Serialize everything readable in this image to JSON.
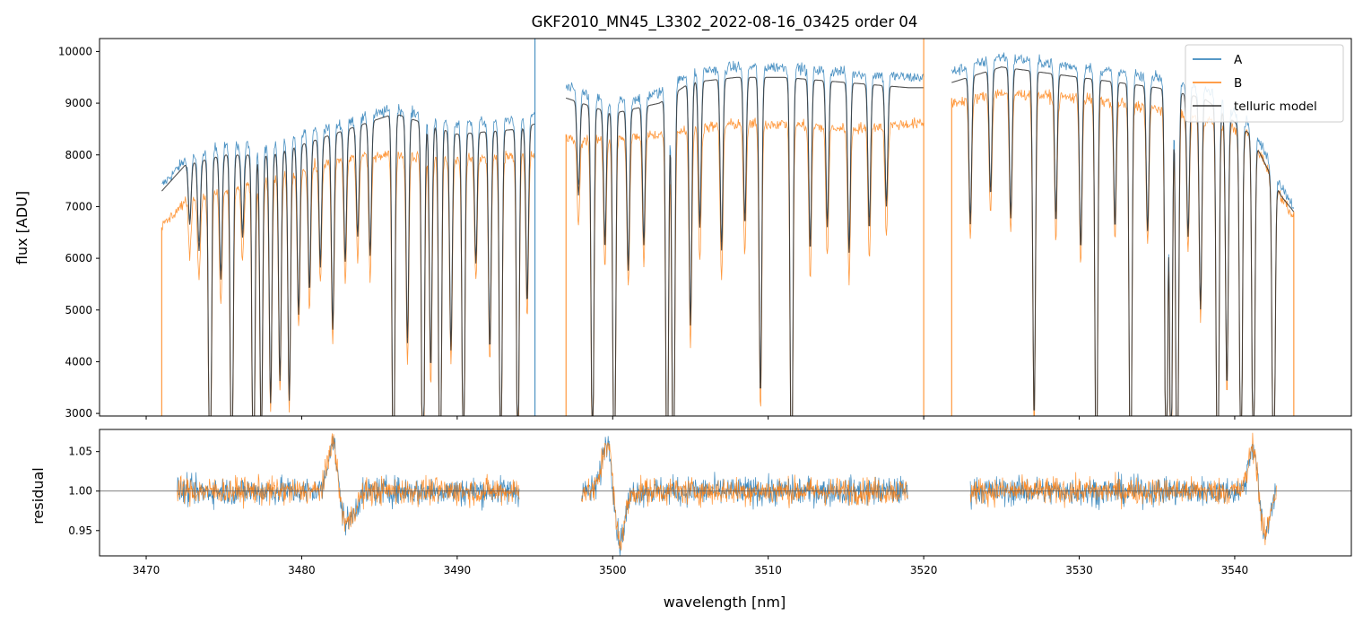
{
  "chart_data": [
    {
      "type": "line",
      "title": "GKF2010_MN45_L3302_2022-08-16_03425  order 04",
      "xlabel": "",
      "ylabel": "flux [ADU]",
      "xlim": [
        3467,
        3547.5
      ],
      "ylim": [
        2950,
        10250
      ],
      "yticks": [
        3000,
        4000,
        5000,
        6000,
        7000,
        8000,
        9000,
        10000
      ],
      "ytick_labels": [
        "3000",
        "4000",
        "5000",
        "6000",
        "7000",
        "8000",
        "9000",
        "10000"
      ],
      "xticks": [
        3470,
        3480,
        3490,
        3500,
        3510,
        3520,
        3530,
        3540
      ],
      "legend": {
        "position": "top-right",
        "entries": [
          "A",
          "B",
          "telluric model"
        ]
      },
      "segments": [
        [
          3471.0,
          3495.0
        ],
        [
          3497.0,
          3520.0
        ],
        [
          3521.8,
          3543.8
        ]
      ],
      "continuum": {
        "A": {
          "x": [
            3471.0,
            3472.5,
            3475.0,
            3478.0,
            3481.0,
            3484.0,
            3486.0,
            3490.0,
            3494.0,
            3495.0,
            3497.0,
            3500.0,
            3503.0,
            3505.0,
            3508.0,
            3511.0,
            3515.0,
            3519.0,
            3520.0,
            3521.8,
            3525.0,
            3530.0,
            3535.0,
            3538.0,
            3541.0,
            3543.0,
            3543.8
          ],
          "y": [
            7400,
            7900,
            8200,
            8200,
            8500,
            8700,
            8900,
            8600,
            8700,
            8800,
            9300,
            9000,
            9200,
            9600,
            9700,
            9700,
            9600,
            9500,
            9500,
            9600,
            9900,
            9700,
            9500,
            9300,
            8600,
            7400,
            7000
          ]
        },
        "B": {
          "x": [
            3471.0,
            3472.5,
            3475.0,
            3478.0,
            3481.0,
            3484.0,
            3486.0,
            3490.0,
            3494.0,
            3495.0,
            3497.0,
            3500.0,
            3503.0,
            3505.0,
            3508.0,
            3511.0,
            3515.0,
            3519.0,
            3520.0,
            3521.8,
            3525.0,
            3530.0,
            3535.0,
            3538.0,
            3541.0,
            3543.0,
            3543.8
          ],
          "y": [
            6600,
            7100,
            7300,
            7500,
            7800,
            8000,
            8000,
            7900,
            8000,
            8000,
            8300,
            8300,
            8400,
            8500,
            8600,
            8600,
            8500,
            8600,
            8600,
            9000,
            9200,
            9100,
            8900,
            8700,
            8400,
            7200,
            6800
          ]
        },
        "model": {
          "x": [
            3471.0,
            3472.5,
            3475.0,
            3478.0,
            3481.0,
            3484.0,
            3486.0,
            3490.0,
            3494.0,
            3495.0,
            3497.0,
            3500.0,
            3503.0,
            3505.0,
            3508.0,
            3511.0,
            3515.0,
            3519.0,
            3520.0,
            3521.8,
            3525.0,
            3530.0,
            3535.0,
            3538.0,
            3541.0,
            3543.0,
            3543.8
          ],
          "y": [
            7300,
            7800,
            8000,
            8000,
            8300,
            8600,
            8800,
            8400,
            8500,
            8600,
            9100,
            8800,
            9000,
            9400,
            9500,
            9500,
            9400,
            9300,
            9300,
            9400,
            9700,
            9500,
            9300,
            9100,
            8400,
            7200,
            6900
          ]
        }
      },
      "lines": [
        {
          "x": 3472.8,
          "depth": 0.15
        },
        {
          "x": 3473.4,
          "depth": 0.22
        },
        {
          "x": 3474.1,
          "depth": 0.98
        },
        {
          "x": 3474.8,
          "depth": 0.3
        },
        {
          "x": 3475.5,
          "depth": 0.98
        },
        {
          "x": 3476.2,
          "depth": 0.2
        },
        {
          "x": 3476.9,
          "depth": 0.98
        },
        {
          "x": 3477.4,
          "depth": 0.75
        },
        {
          "x": 3478.0,
          "depth": 0.6
        },
        {
          "x": 3478.6,
          "depth": 0.55
        },
        {
          "x": 3479.2,
          "depth": 0.6
        },
        {
          "x": 3479.8,
          "depth": 0.4
        },
        {
          "x": 3480.5,
          "depth": 0.35
        },
        {
          "x": 3481.2,
          "depth": 0.3
        },
        {
          "x": 3482.0,
          "depth": 0.45
        },
        {
          "x": 3482.8,
          "depth": 0.3
        },
        {
          "x": 3483.6,
          "depth": 0.25
        },
        {
          "x": 3484.4,
          "depth": 0.3
        },
        {
          "x": 3485.9,
          "depth": 0.9
        },
        {
          "x": 3486.8,
          "depth": 0.5
        },
        {
          "x": 3487.8,
          "depth": 0.98
        },
        {
          "x": 3488.3,
          "depth": 0.55
        },
        {
          "x": 3488.9,
          "depth": 0.98
        },
        {
          "x": 3489.6,
          "depth": 0.5
        },
        {
          "x": 3490.4,
          "depth": 0.85
        },
        {
          "x": 3491.2,
          "depth": 0.3
        },
        {
          "x": 3492.1,
          "depth": 0.5
        },
        {
          "x": 3492.8,
          "depth": 0.85
        },
        {
          "x": 3493.9,
          "depth": 0.8
        },
        {
          "x": 3494.5,
          "depth": 0.4
        },
        {
          "x": 3497.8,
          "depth": 0.2
        },
        {
          "x": 3498.7,
          "depth": 0.8
        },
        {
          "x": 3499.5,
          "depth": 0.3
        },
        {
          "x": 3500.1,
          "depth": 0.98
        },
        {
          "x": 3501.0,
          "depth": 0.35
        },
        {
          "x": 3502.0,
          "depth": 0.3
        },
        {
          "x": 3503.5,
          "depth": 0.88
        },
        {
          "x": 3503.9,
          "depth": 0.98
        },
        {
          "x": 3505.0,
          "depth": 0.5
        },
        {
          "x": 3505.6,
          "depth": 0.3
        },
        {
          "x": 3507.0,
          "depth": 0.35
        },
        {
          "x": 3508.5,
          "depth": 0.3
        },
        {
          "x": 3509.5,
          "depth": 0.65
        },
        {
          "x": 3511.5,
          "depth": 0.98
        },
        {
          "x": 3512.7,
          "depth": 0.35
        },
        {
          "x": 3513.8,
          "depth": 0.3
        },
        {
          "x": 3515.2,
          "depth": 0.35
        },
        {
          "x": 3516.5,
          "depth": 0.3
        },
        {
          "x": 3517.6,
          "depth": 0.25
        },
        {
          "x": 3523.0,
          "depth": 0.3
        },
        {
          "x": 3524.3,
          "depth": 0.25
        },
        {
          "x": 3525.6,
          "depth": 0.3
        },
        {
          "x": 3527.1,
          "depth": 0.7
        },
        {
          "x": 3528.5,
          "depth": 0.3
        },
        {
          "x": 3530.1,
          "depth": 0.35
        },
        {
          "x": 3531.1,
          "depth": 0.93
        },
        {
          "x": 3532.3,
          "depth": 0.3
        },
        {
          "x": 3533.3,
          "depth": 0.94
        },
        {
          "x": 3534.4,
          "depth": 0.3
        },
        {
          "x": 3535.6,
          "depth": 0.98
        },
        {
          "x": 3535.9,
          "depth": 0.85
        },
        {
          "x": 3536.3,
          "depth": 0.98
        },
        {
          "x": 3537.0,
          "depth": 0.3
        },
        {
          "x": 3537.8,
          "depth": 0.45
        },
        {
          "x": 3538.9,
          "depth": 0.98
        },
        {
          "x": 3539.5,
          "depth": 0.6
        },
        {
          "x": 3540.4,
          "depth": 0.88
        },
        {
          "x": 3541.2,
          "depth": 0.9
        },
        {
          "x": 3542.5,
          "depth": 0.98
        }
      ],
      "spikes": [
        {
          "x": 3471.0,
          "y_top": 6600,
          "color": "B"
        },
        {
          "x": 3495.0,
          "y_top": 10250,
          "color": "A"
        },
        {
          "x": 3497.0,
          "y_top": 8400,
          "color": "B"
        },
        {
          "x": 3520.0,
          "y_top": 10250,
          "color": "B"
        },
        {
          "x": 3521.8,
          "y_top": 9100,
          "color": "B"
        },
        {
          "x": 3543.8,
          "y_top": 6900,
          "color": "B"
        }
      ]
    },
    {
      "type": "line",
      "title": "",
      "xlabel": "wavelength [nm]",
      "ylabel": "residual",
      "xlim": [
        3467,
        3547.5
      ],
      "ylim": [
        0.918,
        1.078
      ],
      "yticks": [
        0.95,
        1.0,
        1.05
      ],
      "ytick_labels": [
        "0.95",
        "1.00",
        "1.05"
      ],
      "xticks": [
        3470,
        3480,
        3490,
        3500,
        3510,
        3520,
        3530,
        3540
      ],
      "xtick_labels": [
        "3470",
        "3480",
        "3490",
        "3500",
        "3510",
        "3520",
        "3530",
        "3540"
      ],
      "reference_line": 1.0,
      "segments": [
        [
          3472.0,
          3494.0
        ],
        [
          3498.0,
          3519.0
        ],
        [
          3523.0,
          3542.7
        ]
      ],
      "noise_sigma": 0.017,
      "features": [
        {
          "x": 3482.0,
          "amp": 0.07,
          "width": 0.3
        },
        {
          "x": 3482.9,
          "amp": -0.04,
          "width": 0.5
        },
        {
          "x": 3499.7,
          "amp": 0.07,
          "width": 0.35
        },
        {
          "x": 3500.4,
          "amp": -0.07,
          "width": 0.35
        },
        {
          "x": 3541.2,
          "amp": 0.06,
          "width": 0.3
        },
        {
          "x": 3541.9,
          "amp": -0.06,
          "width": 0.3
        }
      ]
    }
  ],
  "colors": {
    "A": "#1f77b4",
    "B": "#ff7f0e",
    "model": "#333333"
  }
}
